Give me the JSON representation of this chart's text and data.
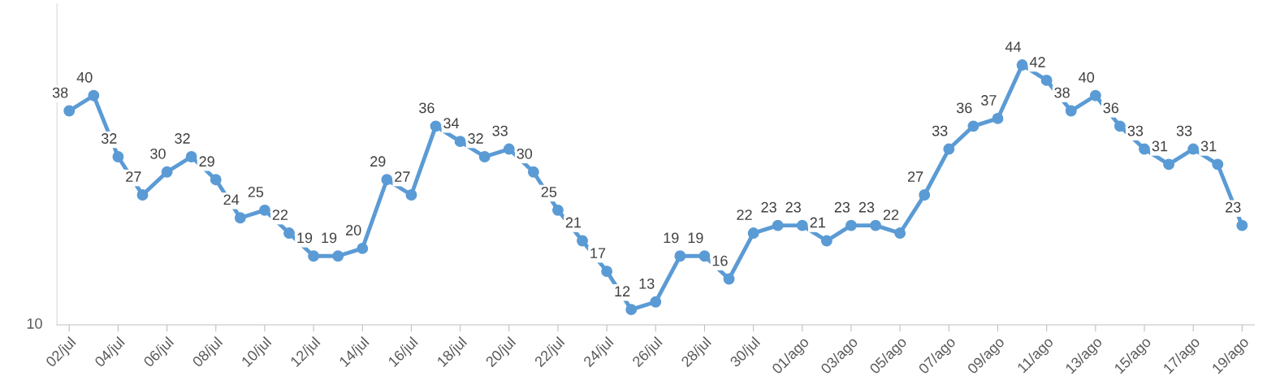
{
  "chart_data": {
    "type": "line",
    "categories": [
      "02/jul",
      null,
      "04/jul",
      null,
      "06/jul",
      null,
      "08/jul",
      null,
      "10/jul",
      null,
      "12/jul",
      null,
      "14/jul",
      null,
      "16/jul",
      null,
      "18/jul",
      null,
      "20/jul",
      null,
      "22/jul",
      null,
      "24/jul",
      null,
      "26/jul",
      null,
      "28/jul",
      null,
      "30/jul",
      null,
      "01/ago",
      null,
      "03/ago",
      null,
      "05/ago",
      null,
      "07/ago",
      null,
      "09/ago",
      null,
      "11/ago",
      null,
      "13/ago",
      null,
      "15/ago",
      null,
      "17/ago",
      null,
      "19/ago"
    ],
    "series": [
      {
        "color": "#5b9bd5",
        "values": [
          38,
          40,
          32,
          27,
          30,
          32,
          29,
          24,
          25,
          22,
          19,
          19,
          20,
          29,
          27,
          36,
          34,
          32,
          33,
          30,
          25,
          21,
          17,
          12,
          13,
          19,
          19,
          16,
          22,
          23,
          23,
          21,
          23,
          23,
          22,
          27,
          33,
          36,
          37,
          44,
          42,
          38,
          40,
          36,
          33,
          31,
          33,
          31,
          23
        ]
      }
    ],
    "ylim": [
      10,
      52
    ],
    "annotations": [
      "10"
    ],
    "data_labels": true,
    "marker": "circle",
    "line_style": "solid",
    "grid": false,
    "legend": false
  }
}
